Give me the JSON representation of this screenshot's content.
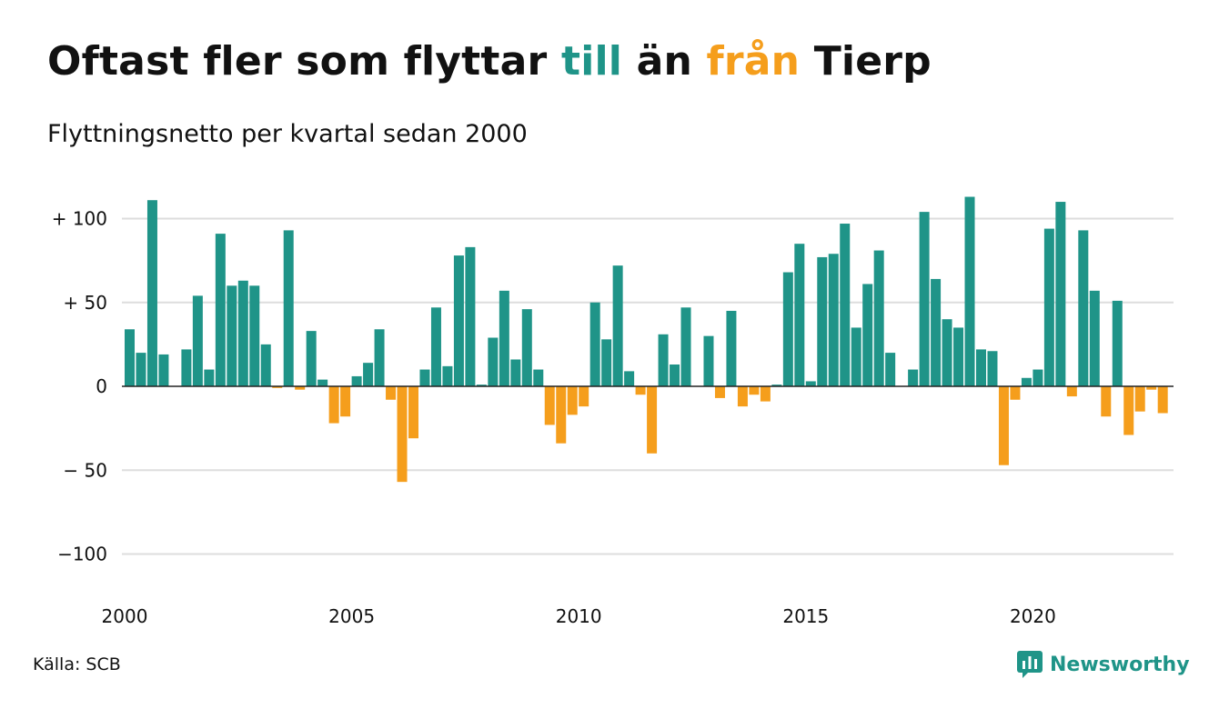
{
  "title": {
    "part1": "Oftast fler som flyttar ",
    "till": "till",
    "part2": " än ",
    "fran": "från",
    "part3": " Tierp"
  },
  "subtitle": "Flyttningsnetto per kvartal sedan 2000",
  "source": "Källa: SCB",
  "brand": "Newsworthy",
  "colors": {
    "positive": "#1f9488",
    "negative": "#f59e1c",
    "grid": "#dddddd"
  },
  "chart_data": {
    "type": "bar",
    "x_ticks": [
      "2000",
      "2005",
      "2010",
      "2015",
      "2020"
    ],
    "y_ticks": [
      {
        "value": 100,
        "label": "+ 100"
      },
      {
        "value": 50,
        "label": "+  50"
      },
      {
        "value": 0,
        "label": "0"
      },
      {
        "value": -50,
        "label": "− 50"
      },
      {
        "value": -100,
        "label": "−100"
      }
    ],
    "ylim": [
      -100,
      100
    ],
    "grid": true,
    "start": "2000 Q1",
    "frequency": "quarterly",
    "values": [
      34,
      20,
      111,
      19,
      0,
      22,
      54,
      10,
      91,
      60,
      63,
      60,
      25,
      -1,
      93,
      -2,
      33,
      4,
      -22,
      -18,
      6,
      14,
      34,
      -8,
      -57,
      -31,
      10,
      47,
      12,
      78,
      83,
      1,
      29,
      57,
      16,
      46,
      10,
      -23,
      -34,
      -17,
      -12,
      50,
      28,
      72,
      9,
      -5,
      -40,
      31,
      13,
      47,
      0,
      30,
      -7,
      45,
      -12,
      -5,
      -9,
      1,
      68,
      85,
      3,
      77,
      79,
      97,
      35,
      61,
      81,
      20,
      0,
      10,
      104,
      64,
      40,
      35,
      113,
      22,
      21,
      -47,
      -8,
      5,
      10,
      94,
      110,
      -6,
      93,
      57,
      -18,
      51,
      -29,
      -15,
      -2,
      -16
    ]
  }
}
